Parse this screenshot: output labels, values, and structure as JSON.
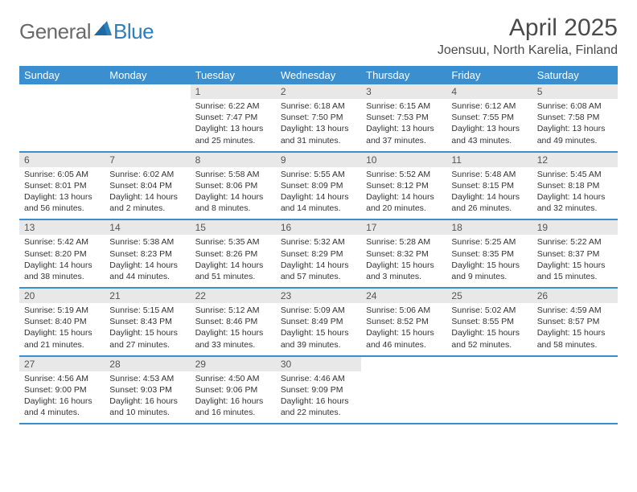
{
  "brand": {
    "part1": "General",
    "part2": "Blue"
  },
  "title": "April 2025",
  "location": "Joensuu, North Karelia, Finland",
  "colors": {
    "header_bg": "#3b8fce",
    "header_text": "#ffffff",
    "daynum_bg": "#e8e8e8",
    "text": "#333333",
    "logo_gray": "#6a6a6a",
    "logo_blue": "#2a7fbf",
    "page_bg": "#ffffff"
  },
  "dow": [
    "Sunday",
    "Monday",
    "Tuesday",
    "Wednesday",
    "Thursday",
    "Friday",
    "Saturday"
  ],
  "weeks": [
    [
      {
        "n": "",
        "sr": "",
        "ss": "",
        "dl": ""
      },
      {
        "n": "",
        "sr": "",
        "ss": "",
        "dl": ""
      },
      {
        "n": "1",
        "sr": "Sunrise: 6:22 AM",
        "ss": "Sunset: 7:47 PM",
        "dl": "Daylight: 13 hours and 25 minutes."
      },
      {
        "n": "2",
        "sr": "Sunrise: 6:18 AM",
        "ss": "Sunset: 7:50 PM",
        "dl": "Daylight: 13 hours and 31 minutes."
      },
      {
        "n": "3",
        "sr": "Sunrise: 6:15 AM",
        "ss": "Sunset: 7:53 PM",
        "dl": "Daylight: 13 hours and 37 minutes."
      },
      {
        "n": "4",
        "sr": "Sunrise: 6:12 AM",
        "ss": "Sunset: 7:55 PM",
        "dl": "Daylight: 13 hours and 43 minutes."
      },
      {
        "n": "5",
        "sr": "Sunrise: 6:08 AM",
        "ss": "Sunset: 7:58 PM",
        "dl": "Daylight: 13 hours and 49 minutes."
      }
    ],
    [
      {
        "n": "6",
        "sr": "Sunrise: 6:05 AM",
        "ss": "Sunset: 8:01 PM",
        "dl": "Daylight: 13 hours and 56 minutes."
      },
      {
        "n": "7",
        "sr": "Sunrise: 6:02 AM",
        "ss": "Sunset: 8:04 PM",
        "dl": "Daylight: 14 hours and 2 minutes."
      },
      {
        "n": "8",
        "sr": "Sunrise: 5:58 AM",
        "ss": "Sunset: 8:06 PM",
        "dl": "Daylight: 14 hours and 8 minutes."
      },
      {
        "n": "9",
        "sr": "Sunrise: 5:55 AM",
        "ss": "Sunset: 8:09 PM",
        "dl": "Daylight: 14 hours and 14 minutes."
      },
      {
        "n": "10",
        "sr": "Sunrise: 5:52 AM",
        "ss": "Sunset: 8:12 PM",
        "dl": "Daylight: 14 hours and 20 minutes."
      },
      {
        "n": "11",
        "sr": "Sunrise: 5:48 AM",
        "ss": "Sunset: 8:15 PM",
        "dl": "Daylight: 14 hours and 26 minutes."
      },
      {
        "n": "12",
        "sr": "Sunrise: 5:45 AM",
        "ss": "Sunset: 8:18 PM",
        "dl": "Daylight: 14 hours and 32 minutes."
      }
    ],
    [
      {
        "n": "13",
        "sr": "Sunrise: 5:42 AM",
        "ss": "Sunset: 8:20 PM",
        "dl": "Daylight: 14 hours and 38 minutes."
      },
      {
        "n": "14",
        "sr": "Sunrise: 5:38 AM",
        "ss": "Sunset: 8:23 PM",
        "dl": "Daylight: 14 hours and 44 minutes."
      },
      {
        "n": "15",
        "sr": "Sunrise: 5:35 AM",
        "ss": "Sunset: 8:26 PM",
        "dl": "Daylight: 14 hours and 51 minutes."
      },
      {
        "n": "16",
        "sr": "Sunrise: 5:32 AM",
        "ss": "Sunset: 8:29 PM",
        "dl": "Daylight: 14 hours and 57 minutes."
      },
      {
        "n": "17",
        "sr": "Sunrise: 5:28 AM",
        "ss": "Sunset: 8:32 PM",
        "dl": "Daylight: 15 hours and 3 minutes."
      },
      {
        "n": "18",
        "sr": "Sunrise: 5:25 AM",
        "ss": "Sunset: 8:35 PM",
        "dl": "Daylight: 15 hours and 9 minutes."
      },
      {
        "n": "19",
        "sr": "Sunrise: 5:22 AM",
        "ss": "Sunset: 8:37 PM",
        "dl": "Daylight: 15 hours and 15 minutes."
      }
    ],
    [
      {
        "n": "20",
        "sr": "Sunrise: 5:19 AM",
        "ss": "Sunset: 8:40 PM",
        "dl": "Daylight: 15 hours and 21 minutes."
      },
      {
        "n": "21",
        "sr": "Sunrise: 5:15 AM",
        "ss": "Sunset: 8:43 PM",
        "dl": "Daylight: 15 hours and 27 minutes."
      },
      {
        "n": "22",
        "sr": "Sunrise: 5:12 AM",
        "ss": "Sunset: 8:46 PM",
        "dl": "Daylight: 15 hours and 33 minutes."
      },
      {
        "n": "23",
        "sr": "Sunrise: 5:09 AM",
        "ss": "Sunset: 8:49 PM",
        "dl": "Daylight: 15 hours and 39 minutes."
      },
      {
        "n": "24",
        "sr": "Sunrise: 5:06 AM",
        "ss": "Sunset: 8:52 PM",
        "dl": "Daylight: 15 hours and 46 minutes."
      },
      {
        "n": "25",
        "sr": "Sunrise: 5:02 AM",
        "ss": "Sunset: 8:55 PM",
        "dl": "Daylight: 15 hours and 52 minutes."
      },
      {
        "n": "26",
        "sr": "Sunrise: 4:59 AM",
        "ss": "Sunset: 8:57 PM",
        "dl": "Daylight: 15 hours and 58 minutes."
      }
    ],
    [
      {
        "n": "27",
        "sr": "Sunrise: 4:56 AM",
        "ss": "Sunset: 9:00 PM",
        "dl": "Daylight: 16 hours and 4 minutes."
      },
      {
        "n": "28",
        "sr": "Sunrise: 4:53 AM",
        "ss": "Sunset: 9:03 PM",
        "dl": "Daylight: 16 hours and 10 minutes."
      },
      {
        "n": "29",
        "sr": "Sunrise: 4:50 AM",
        "ss": "Sunset: 9:06 PM",
        "dl": "Daylight: 16 hours and 16 minutes."
      },
      {
        "n": "30",
        "sr": "Sunrise: 4:46 AM",
        "ss": "Sunset: 9:09 PM",
        "dl": "Daylight: 16 hours and 22 minutes."
      },
      {
        "n": "",
        "sr": "",
        "ss": "",
        "dl": ""
      },
      {
        "n": "",
        "sr": "",
        "ss": "",
        "dl": ""
      },
      {
        "n": "",
        "sr": "",
        "ss": "",
        "dl": ""
      }
    ]
  ]
}
